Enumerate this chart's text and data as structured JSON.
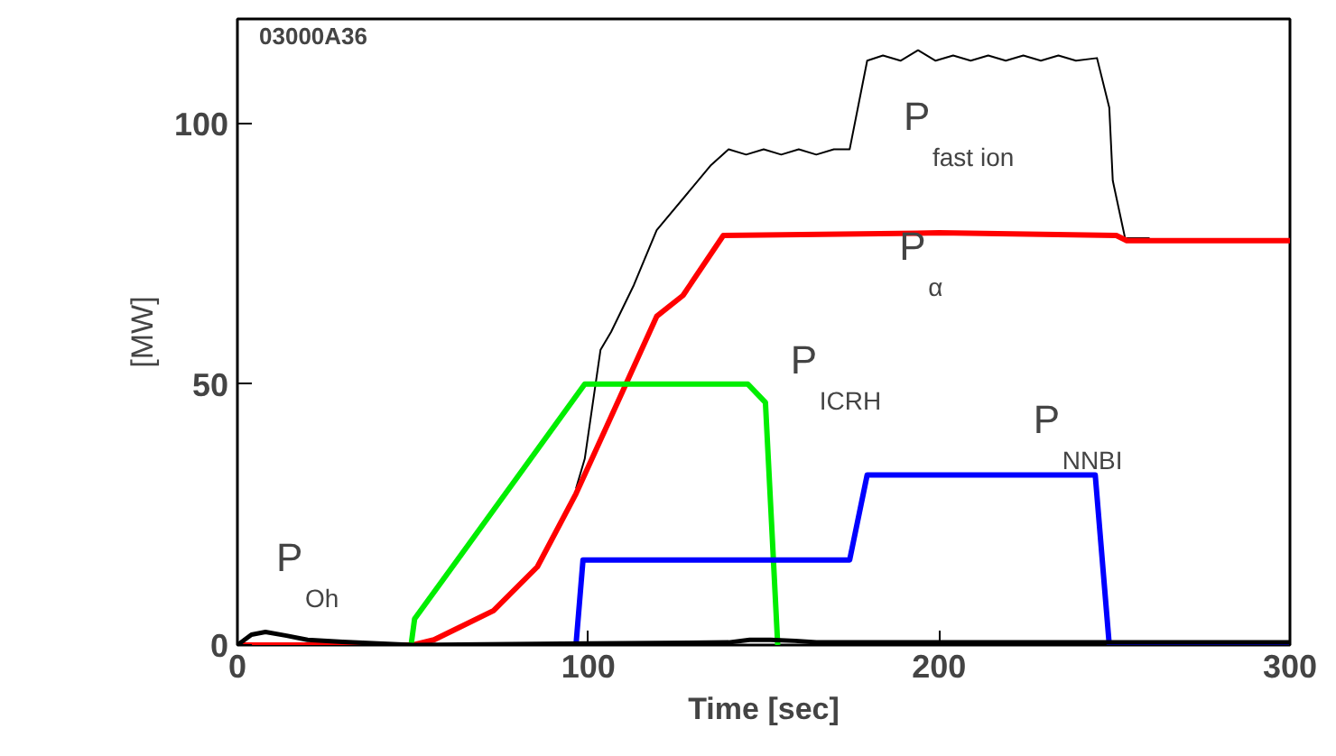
{
  "chart_data": {
    "type": "line",
    "xlabel": "Time [sec]",
    "ylabel": "[MW]",
    "xlim": [
      0,
      300
    ],
    "ylim": [
      0,
      120
    ],
    "xticks": [
      0,
      100,
      200,
      300
    ],
    "yticks": [
      0,
      50,
      100
    ],
    "grid": false,
    "marker": "none",
    "line_style": "solid",
    "series": [
      {
        "name": "P$_{fast ion}$",
        "color": "#000000",
        "x": [
          96.5,
          99,
          103.5,
          106.5,
          113,
          119.5,
          135,
          140,
          145,
          150,
          155,
          160,
          165,
          170,
          174.5,
          179.5,
          184,
          189,
          194,
          199,
          204,
          209,
          214,
          219,
          224,
          229,
          234,
          239,
          245,
          248.5,
          249.5,
          253,
          260
        ],
        "values": [
          30,
          35.7,
          56.6,
          60,
          69,
          79.5,
          92,
          95,
          94,
          95,
          94,
          95,
          94,
          95,
          95,
          112,
          113,
          112,
          114,
          112,
          113,
          112,
          113,
          112,
          113,
          112,
          113,
          112,
          112.5,
          103,
          89,
          78,
          78
        ]
      },
      {
        "name": "P$_{α}$",
        "color": "#ff0000",
        "x": [
          0,
          50,
          56,
          73,
          85.5,
          96.5,
          106,
          119.5,
          127,
          138.5,
          200,
          250.5,
          253.5,
          300
        ],
        "values": [
          0,
          0,
          1,
          6.6,
          15,
          29,
          43,
          63,
          67,
          78.5,
          79,
          78.5,
          77.5,
          77.5
        ]
      },
      {
        "name": "P$_{ICRH}$",
        "color": "#00ee00",
        "x": [
          49.5,
          50.5,
          99,
          145.5,
          150.5,
          154
        ],
        "values": [
          0,
          5,
          50,
          50,
          46.5,
          0
        ]
      },
      {
        "name": "P$_{NNBI}$",
        "color": "#0000ff",
        "x": [
          96.5,
          98.5,
          174.5,
          179.5,
          244.5,
          248.5,
          300
        ],
        "values": [
          0,
          16.3,
          16.3,
          32.6,
          32.6,
          0,
          0
        ]
      },
      {
        "name": "P$_{Oh}$",
        "color": "#000000",
        "x": [
          0,
          4,
          8,
          14,
          20,
          30,
          40,
          50,
          100,
          140,
          146,
          152,
          159,
          165,
          200,
          300
        ],
        "values": [
          0,
          2,
          2.5,
          1.8,
          1,
          0.6,
          0.3,
          0,
          0.3,
          0.5,
          1,
          1,
          0.8,
          0.5,
          0.5,
          0.5
        ]
      }
    ],
    "annotations": [
      "03000A36"
    ]
  }
}
